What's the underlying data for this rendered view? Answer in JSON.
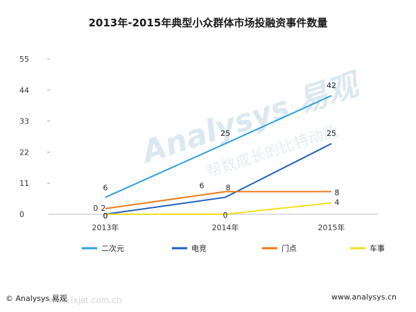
{
  "chart_data": {
    "type": "line",
    "title": "2013年-2015年典型小众群体市场投融资事件数量",
    "categories": [
      "2013年",
      "2014年",
      "2015年"
    ],
    "y_ticks": [
      0,
      11,
      22,
      33,
      44,
      55
    ],
    "ylim": [
      0,
      55
    ],
    "grid": false,
    "legend_position": "bottom",
    "series": [
      {
        "name": "二次元",
        "color": "#2f9ee0",
        "values": [
          6,
          25,
          42
        ],
        "labels": [
          "6",
          "25",
          "42"
        ]
      },
      {
        "name": "电竞",
        "color": "#1f5fbd",
        "values": [
          0,
          6,
          25
        ],
        "labels": [
          "0",
          "",
          "25"
        ]
      },
      {
        "name": "门点",
        "color": "#ee7a1a",
        "values": [
          2,
          8,
          8
        ],
        "labels": [
          "2",
          "8",
          "8"
        ],
        "extra_labels": [
          {
            "index": 0,
            "text": "0"
          },
          {
            "index": 1,
            "text": "6"
          }
        ]
      },
      {
        "name": "车事",
        "color": "#f2de1c",
        "values": [
          0,
          0,
          4
        ],
        "labels": [
          "0",
          "0",
          "4"
        ]
      }
    ]
  },
  "footer": {
    "left": "© Analysys 易观",
    "right": "www.analysys.cn"
  },
  "watermark": {
    "text": "Analysys 易观",
    "subtext": "帮数成长的比特动能",
    "url": "www.lxjat.com.cn"
  }
}
